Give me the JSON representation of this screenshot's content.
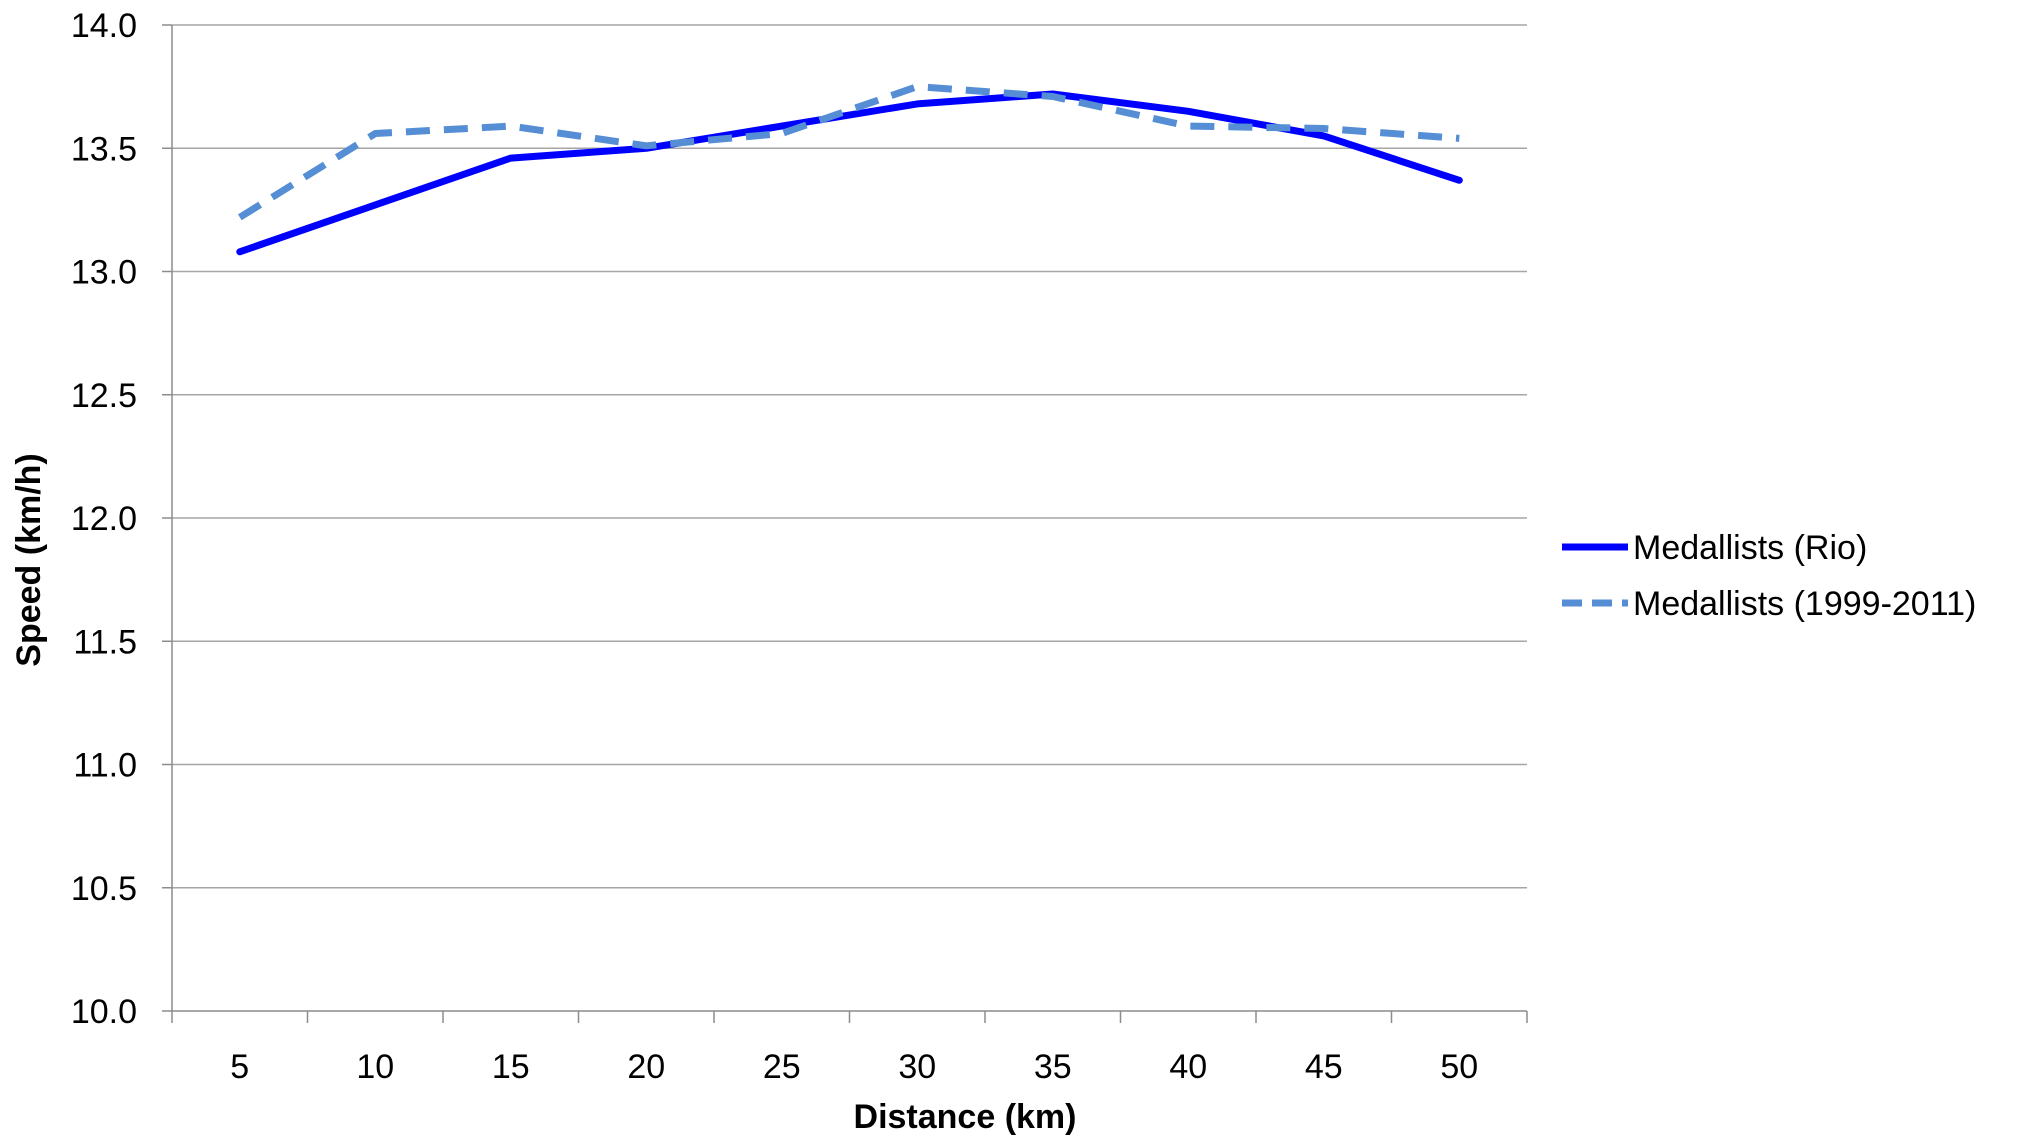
{
  "chart_data": {
    "type": "line",
    "title": "",
    "xlabel": "Distance (km)",
    "ylabel": "Speed (km/h)",
    "categories": [
      "5",
      "10",
      "15",
      "20",
      "25",
      "30",
      "35",
      "40",
      "45",
      "50"
    ],
    "ylim": [
      10.0,
      14.0
    ],
    "yticks": [
      "10.0",
      "10.5",
      "11.0",
      "11.5",
      "12.0",
      "12.5",
      "13.0",
      "13.5",
      "14.0"
    ],
    "grid": true,
    "legend_position": "right",
    "series": [
      {
        "name": "Medallists (Rio)",
        "values": [
          13.08,
          13.27,
          13.46,
          13.5,
          13.59,
          13.68,
          13.72,
          13.65,
          13.55,
          13.37
        ],
        "color": "#0000ff",
        "style": "solid"
      },
      {
        "name": "Medallists (1999-2011)",
        "values": [
          13.22,
          13.56,
          13.59,
          13.51,
          13.56,
          13.75,
          13.71,
          13.59,
          13.58,
          13.54
        ],
        "color": "#558ed5",
        "style": "dashed"
      }
    ]
  }
}
